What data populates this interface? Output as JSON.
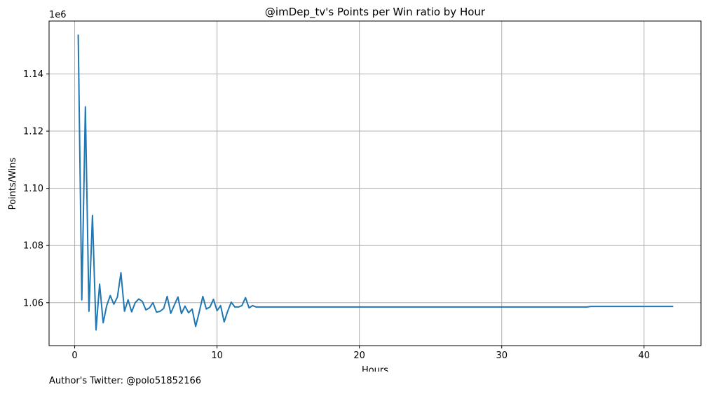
{
  "chart_data": {
    "type": "line",
    "title": "@imDep_tv's Points per Win ratio by Hour",
    "xlabel": "Hours",
    "ylabel": "Points/Wins",
    "offset_text": "1e6",
    "xlim": [
      -1.8,
      44.0
    ],
    "ylim": [
      1.045,
      1.1585
    ],
    "xticks": [
      0,
      10,
      20,
      30,
      40
    ],
    "yticks": [
      1.06,
      1.08,
      1.1,
      1.12,
      1.14
    ],
    "ytick_labels": [
      "1.06",
      "1.08",
      "1.10",
      "1.12",
      "1.14"
    ],
    "xtick_labels": [
      "0",
      "10",
      "20",
      "30",
      "40"
    ],
    "grid": true,
    "series": [
      {
        "color": "#1f77b4",
        "x": [
          0.25,
          0.5,
          0.75,
          1.0,
          1.25,
          1.5,
          1.75,
          2.0,
          2.25,
          2.5,
          2.75,
          3.0,
          3.25,
          3.5,
          3.75,
          4.0,
          4.25,
          4.5,
          4.75,
          5.0,
          5.25,
          5.5,
          5.75,
          6.0,
          6.25,
          6.5,
          6.75,
          7.0,
          7.25,
          7.5,
          7.75,
          8.0,
          8.25,
          8.5,
          8.75,
          9.0,
          9.25,
          9.5,
          9.75,
          10.0,
          10.25,
          10.5,
          10.75,
          11.0,
          11.25,
          11.5,
          11.75,
          12.0,
          12.25,
          12.5,
          12.75,
          13.0,
          16.0,
          20.0,
          25.0,
          30.0,
          36.0,
          36.25,
          40.0,
          42.0
        ],
        "y": [
          1.1535,
          1.061,
          1.1285,
          1.057,
          1.0905,
          1.0505,
          1.0665,
          1.053,
          1.059,
          1.0625,
          1.0595,
          1.062,
          1.0705,
          1.057,
          1.061,
          1.0568,
          1.06,
          1.0613,
          1.0605,
          1.0575,
          1.0582,
          1.06,
          1.0567,
          1.057,
          1.058,
          1.0622,
          1.0563,
          1.0592,
          1.062,
          1.0562,
          1.0588,
          1.0565,
          1.0578,
          1.0517,
          1.0567,
          1.0622,
          1.0578,
          1.0585,
          1.0612,
          1.0572,
          1.059,
          1.0533,
          1.057,
          1.0602,
          1.0585,
          1.0585,
          1.059,
          1.0618,
          1.0582,
          1.059,
          1.0585,
          1.0585,
          1.0585,
          1.0585,
          1.0585,
          1.0585,
          1.0585,
          1.0587,
          1.0587,
          1.0587
        ]
      }
    ]
  },
  "footer": {
    "author_note": "Author's Twitter: @polo51852166"
  }
}
